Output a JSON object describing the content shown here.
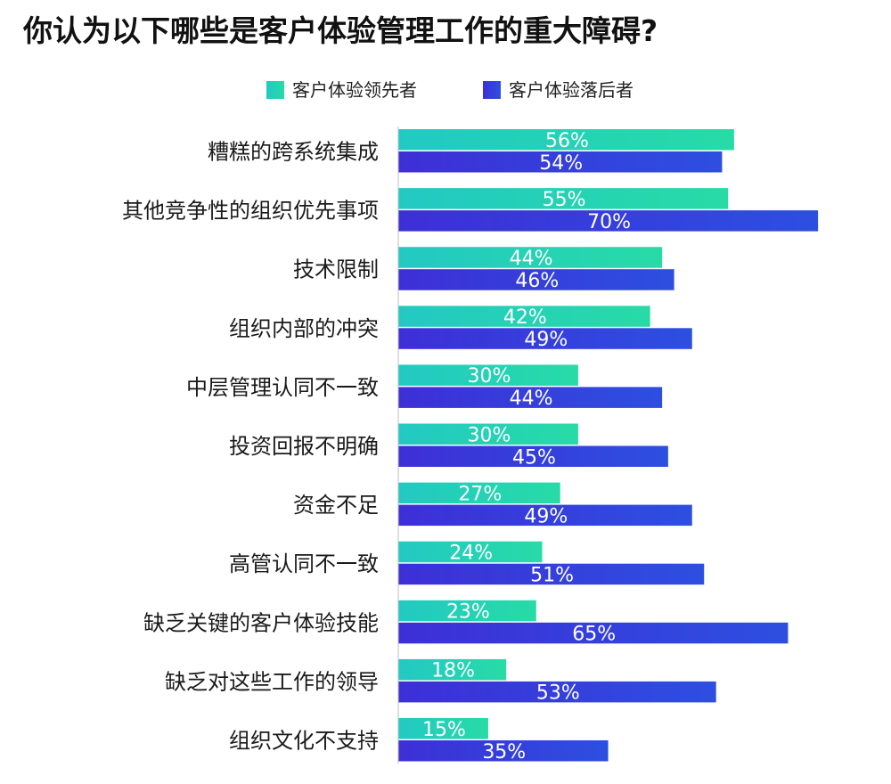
{
  "chart_data": {
    "type": "bar",
    "orientation": "horizontal",
    "title": "你认为以下哪些是客户体验管理工作的重大障碍?",
    "legend_position": "top",
    "grid": false,
    "xlim": [
      0,
      100
    ],
    "value_suffix": "%",
    "categories": [
      "糟糕的跨系统集成",
      "其他竞争性的组织优先事项",
      "技术限制",
      "组织内部的冲突",
      "中层管理认同不一致",
      "投资回报不明确",
      "资金不足",
      "高管认同不一致",
      "缺乏关键的客户体验技能",
      "缺乏对这些工作的领导",
      "组织文化不支持"
    ],
    "series": [
      {
        "name": "客户体验领先者",
        "values": [
          56,
          55,
          44,
          42,
          30,
          30,
          27,
          24,
          23,
          18,
          15
        ],
        "color_start": "#22c9c3",
        "color_end": "#27dba6"
      },
      {
        "name": "客户体验落后者",
        "values": [
          54,
          70,
          46,
          49,
          44,
          45,
          49,
          51,
          65,
          53,
          35
        ],
        "color_start": "#3d2fd6",
        "color_end": "#2d4fe0"
      }
    ]
  }
}
